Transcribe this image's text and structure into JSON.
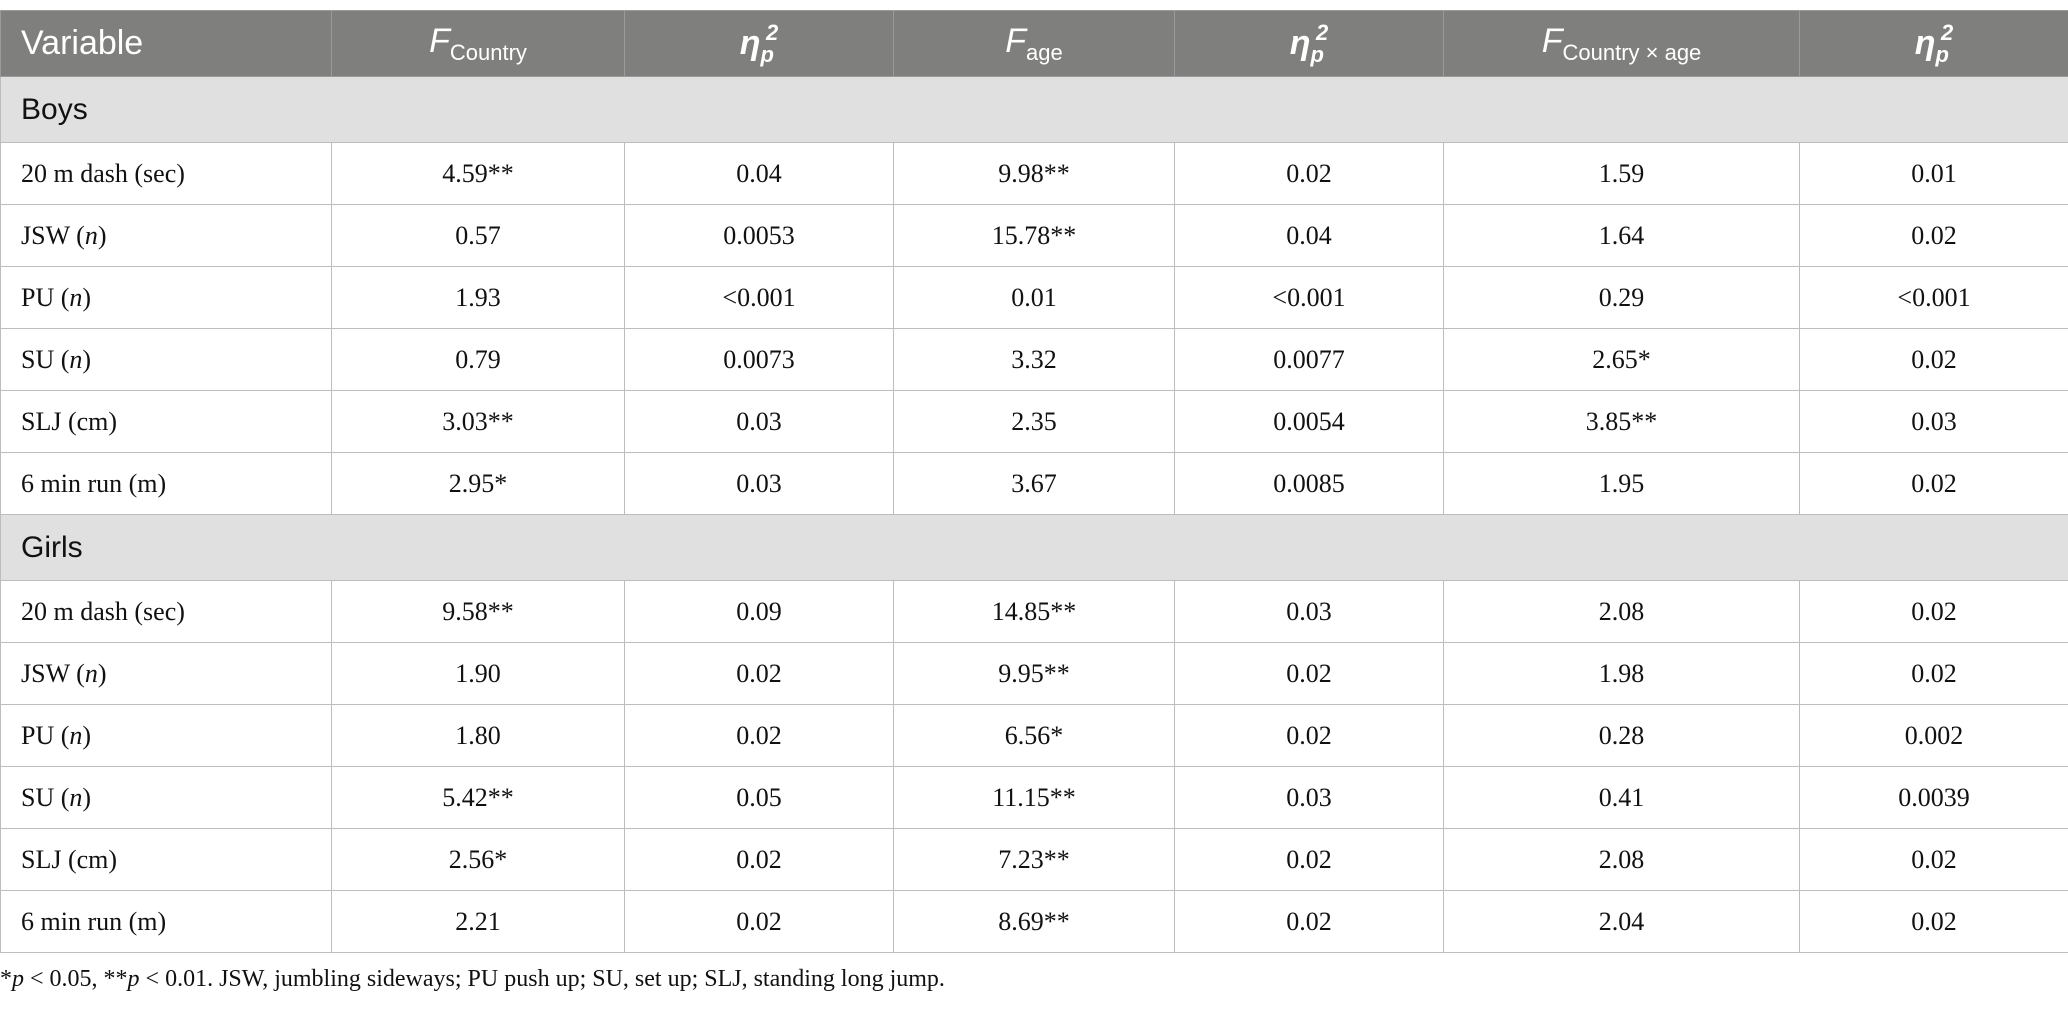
{
  "table": {
    "columns": [
      {
        "text": "Variable"
      },
      {
        "symbol": "F",
        "subscript": "Country"
      },
      {
        "symbol": "η",
        "subscript": "p",
        "superscript": "2"
      },
      {
        "symbol": "F",
        "subscript": "age"
      },
      {
        "symbol": "η",
        "subscript": "p",
        "superscript": "2"
      },
      {
        "symbol": "F",
        "subscript": "Country × age"
      },
      {
        "symbol": "η",
        "subscript": "p",
        "superscript": "2"
      }
    ],
    "sections": [
      {
        "title": "Boys",
        "rows": [
          {
            "label": [
              "20 m dash (sec)"
            ],
            "cells": [
              "4.59**",
              "0.04",
              "9.98**",
              "0.02",
              "1.59",
              "0.01"
            ]
          },
          {
            "label": [
              "JSW (",
              "n",
              ")"
            ],
            "cells": [
              "0.57",
              "0.0053",
              "15.78**",
              "0.04",
              "1.64",
              "0.02"
            ]
          },
          {
            "label": [
              "PU (",
              "n",
              ")"
            ],
            "cells": [
              "1.93",
              "<0.001",
              "0.01",
              "<0.001",
              "0.29",
              "<0.001"
            ]
          },
          {
            "label": [
              "SU (",
              "n",
              ")"
            ],
            "cells": [
              "0.79",
              "0.0073",
              "3.32",
              "0.0077",
              "2.65*",
              "0.02"
            ]
          },
          {
            "label": [
              "SLJ (cm)"
            ],
            "cells": [
              "3.03**",
              "0.03",
              "2.35",
              "0.0054",
              "3.85**",
              "0.03"
            ]
          },
          {
            "label": [
              "6 min run (m)"
            ],
            "cells": [
              "2.95*",
              "0.03",
              "3.67",
              "0.0085",
              "1.95",
              "0.02"
            ]
          }
        ]
      },
      {
        "title": "Girls",
        "rows": [
          {
            "label": [
              "20 m dash (sec)"
            ],
            "cells": [
              "9.58**",
              "0.09",
              "14.85**",
              "0.03",
              "2.08",
              "0.02"
            ]
          },
          {
            "label": [
              "JSW (",
              "n",
              ")"
            ],
            "cells": [
              "1.90",
              "0.02",
              "9.95**",
              "0.02",
              "1.98",
              "0.02"
            ]
          },
          {
            "label": [
              "PU (",
              "n",
              ")"
            ],
            "cells": [
              "1.80",
              "0.02",
              "6.56*",
              "0.02",
              "0.28",
              "0.002"
            ]
          },
          {
            "label": [
              "SU (",
              "n",
              ")"
            ],
            "cells": [
              "5.42**",
              "0.05",
              "11.15**",
              "0.03",
              "0.41",
              "0.0039"
            ]
          },
          {
            "label": [
              "SLJ (cm)"
            ],
            "cells": [
              "2.56*",
              "0.02",
              "7.23**",
              "0.02",
              "2.08",
              "0.02"
            ]
          },
          {
            "label": [
              "6 min run (m)"
            ],
            "cells": [
              "2.21",
              "0.02",
              "8.69**",
              "0.02",
              "2.04",
              "0.02"
            ]
          }
        ]
      }
    ]
  },
  "footnote": [
    "*",
    "p",
    " < 0.05, **",
    "p",
    " < 0.01. JSW, jumbling sideways; PU push up; SU, set up; SLJ, standing long jump."
  ]
}
